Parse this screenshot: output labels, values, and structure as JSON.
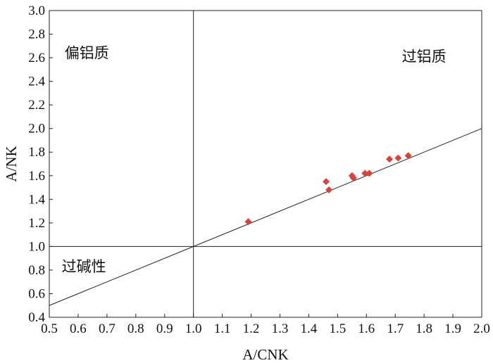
{
  "chart_data": {
    "type": "scatter",
    "title": "",
    "xlabel": "A/CNK",
    "ylabel": "A/NK",
    "xlim": [
      0.5,
      2.0
    ],
    "ylim": [
      0.4,
      3.0
    ],
    "x_ticks": [
      "0.5",
      "0.6",
      "0.7",
      "0.8",
      "0.9",
      "1.0",
      "1.1",
      "1.2",
      "1.3",
      "1.4",
      "1.5",
      "1.6",
      "1.7",
      "1.8",
      "1.9",
      "2.0"
    ],
    "y_ticks": [
      "0.4",
      "0.6",
      "0.8",
      "1.0",
      "1.2",
      "1.4",
      "1.6",
      "1.8",
      "2.0",
      "2.2",
      "2.4",
      "2.6",
      "2.8",
      "3.0"
    ],
    "grid": false,
    "series": [
      {
        "name": "",
        "marker": "diamond",
        "color": "#d9413a",
        "points": [
          {
            "x": 1.19,
            "y": 1.21
          },
          {
            "x": 1.46,
            "y": 1.55
          },
          {
            "x": 1.47,
            "y": 1.48
          },
          {
            "x": 1.55,
            "y": 1.6
          },
          {
            "x": 1.555,
            "y": 1.58
          },
          {
            "x": 1.595,
            "y": 1.62
          },
          {
            "x": 1.61,
            "y": 1.62
          },
          {
            "x": 1.68,
            "y": 1.74
          },
          {
            "x": 1.71,
            "y": 1.75
          },
          {
            "x": 1.745,
            "y": 1.77
          }
        ]
      }
    ],
    "reference_lines": [
      {
        "type": "vertical",
        "x": 1.0
      },
      {
        "type": "horizontal",
        "y": 1.0
      },
      {
        "type": "line",
        "from": [
          0.5,
          0.5
        ],
        "to": [
          2.0,
          2.0
        ]
      }
    ],
    "annotations": [
      {
        "text": "偏铝质",
        "x": 0.63,
        "y": 2.64
      },
      {
        "text": "过铝质",
        "x": 1.8,
        "y": 2.61
      },
      {
        "text": "过碱性",
        "x": 0.62,
        "y": 0.83
      }
    ]
  }
}
